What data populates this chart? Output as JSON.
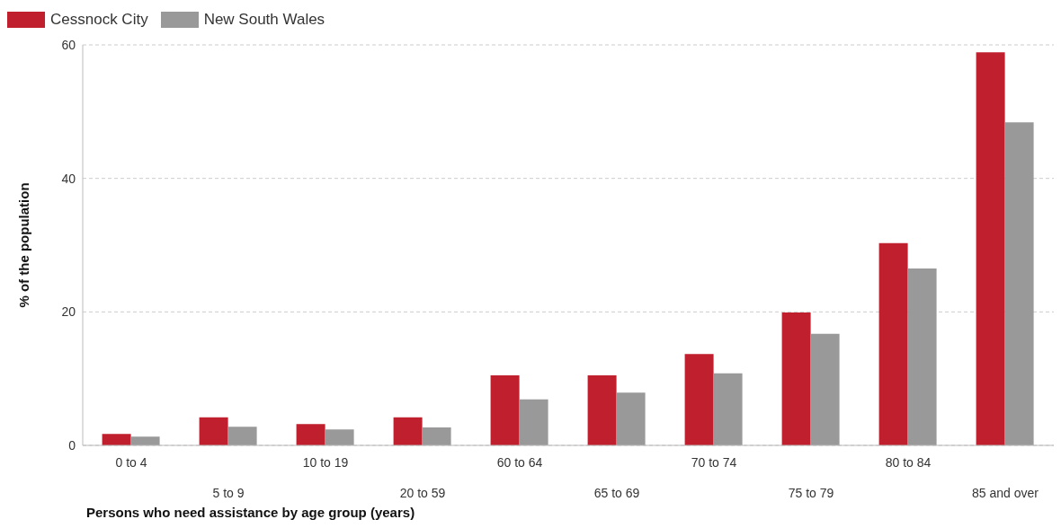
{
  "chart_data": {
    "type": "bar",
    "xlabel": "Persons who need assistance by age group (years)",
    "ylabel": "% of the population",
    "categories": [
      "0 to 4",
      "5 to 9",
      "10 to 19",
      "20 to 59",
      "60 to 64",
      "65 to 69",
      "70 to 74",
      "75 to 79",
      "80 to 84",
      "85 and over"
    ],
    "series": [
      {
        "name": "Cessnock City",
        "color": "#c0202e",
        "values": [
          1.7,
          4.2,
          3.2,
          4.2,
          10.5,
          10.5,
          13.7,
          19.9,
          30.3,
          58.9
        ]
      },
      {
        "name": "New South Wales",
        "color": "#999999",
        "values": [
          1.3,
          2.8,
          2.4,
          2.7,
          6.9,
          7.9,
          10.8,
          16.7,
          26.5,
          48.4
        ]
      }
    ],
    "ylim": [
      0,
      60
    ],
    "yticks": [
      0,
      20,
      40,
      60
    ],
    "grid": "y",
    "legend": "top left"
  }
}
